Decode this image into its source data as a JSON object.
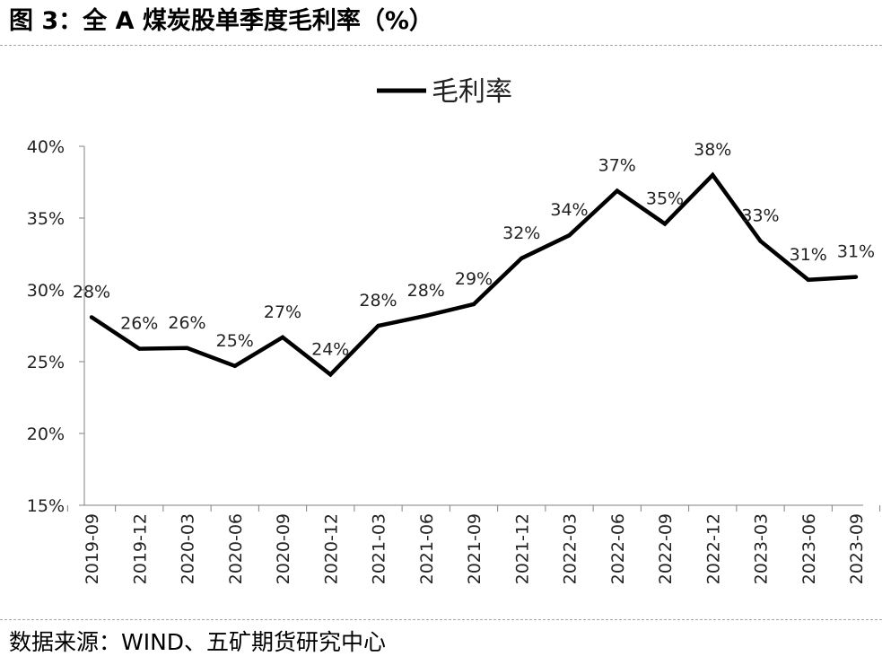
{
  "figure": {
    "title": "图 3：全 A 煤炭股单季度毛利率（%）",
    "source": "数据来源：WIND、五矿期货研究中心"
  },
  "chart_data": {
    "type": "line",
    "title": "",
    "xlabel": "",
    "ylabel": "",
    "categories": [
      "2019-09",
      "2019-12",
      "2020-03",
      "2020-06",
      "2020-09",
      "2020-12",
      "2021-03",
      "2021-06",
      "2021-09",
      "2021-12",
      "2022-03",
      "2022-06",
      "2022-09",
      "2022-12",
      "2023-03",
      "2023-06",
      "2023-09"
    ],
    "series": [
      {
        "name": "毛利率",
        "values": [
          28.1,
          25.9,
          25.95,
          24.7,
          26.7,
          24.1,
          27.5,
          28.2,
          29.0,
          32.2,
          33.8,
          36.9,
          34.6,
          38.0,
          33.4,
          30.7,
          30.9
        ],
        "labels": [
          "28%",
          "26%",
          "26%",
          "25%",
          "27%",
          "24%",
          "28%",
          "28%",
          "29%",
          "32%",
          "34%",
          "37%",
          "35%",
          "38%",
          "33%",
          "31%",
          "31%"
        ],
        "color": "#000000"
      }
    ],
    "yticks": [
      15,
      20,
      25,
      30,
      35,
      40
    ],
    "ytick_labels": [
      "15%",
      "20%",
      "25%",
      "30%",
      "35%",
      "40%"
    ],
    "ylim": [
      15,
      40
    ],
    "grid": false,
    "legend": "top-center"
  }
}
